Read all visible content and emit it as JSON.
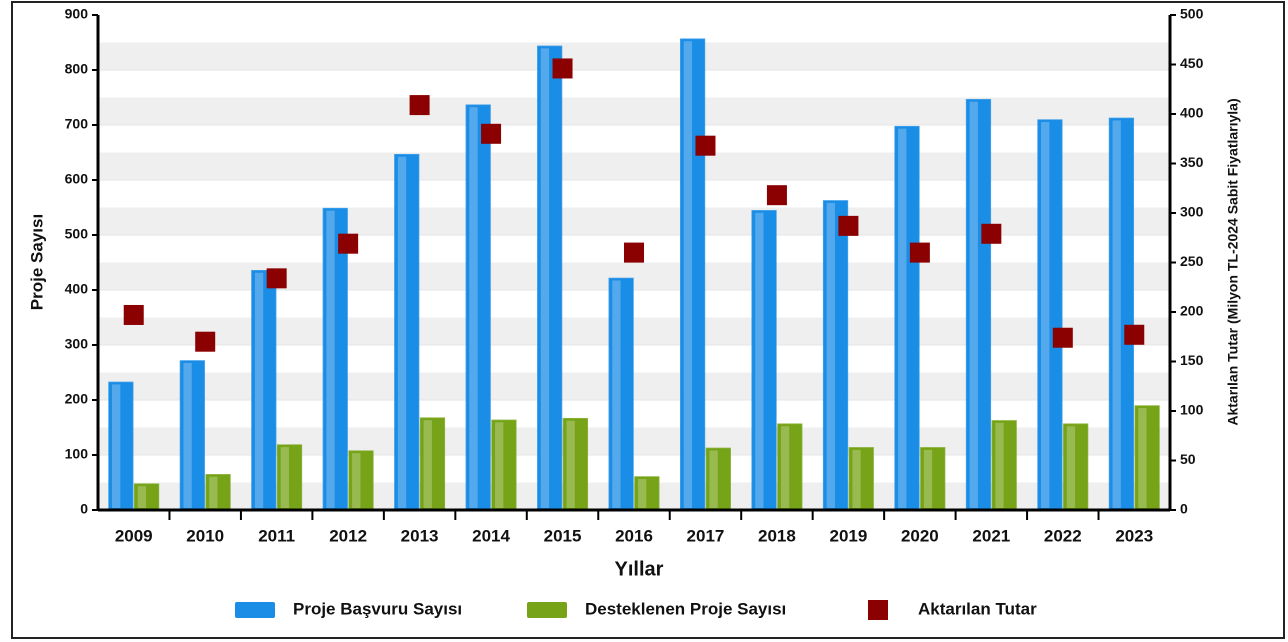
{
  "chart_data": {
    "type": "bar",
    "categories": [
      "2009",
      "2010",
      "2011",
      "2012",
      "2013",
      "2014",
      "2015",
      "2016",
      "2017",
      "2018",
      "2019",
      "2020",
      "2021",
      "2022",
      "2023"
    ],
    "x_label": "Yıllar",
    "y_label": "Proje Sayısı",
    "y2_label": "Aktarılan Tutar (Milyon TL-2024 Sabit Fiyatlarıyla)",
    "ylim": [
      0,
      900
    ],
    "yticks": [
      0,
      100,
      200,
      300,
      400,
      500,
      600,
      700,
      800,
      900
    ],
    "y2lim": [
      0,
      500
    ],
    "y2ticks": [
      0,
      50,
      100,
      150,
      200,
      250,
      300,
      350,
      400,
      450,
      500
    ],
    "grid": true,
    "series": [
      {
        "name": "Proje Başvuru Sayısı",
        "type": "bar",
        "color": "#1a8de6",
        "values": [
          232,
          271,
          435,
          548,
          646,
          736,
          843,
          421,
          856,
          544,
          562,
          697,
          746,
          709,
          712
        ]
      },
      {
        "name": "Desteklenen Proje Sayısı",
        "type": "bar",
        "color": "#76a317",
        "values": [
          47,
          64,
          118,
          107,
          167,
          163,
          166,
          60,
          112,
          156,
          113,
          113,
          162,
          156,
          189
        ]
      },
      {
        "name": "Aktarılan Tutar",
        "type": "scatter",
        "axis": "y2",
        "color": "#8b0000",
        "values": [
          197,
          170,
          234,
          269,
          409,
          380,
          446,
          260,
          368,
          318,
          287,
          260,
          279,
          174,
          177
        ]
      }
    ]
  }
}
